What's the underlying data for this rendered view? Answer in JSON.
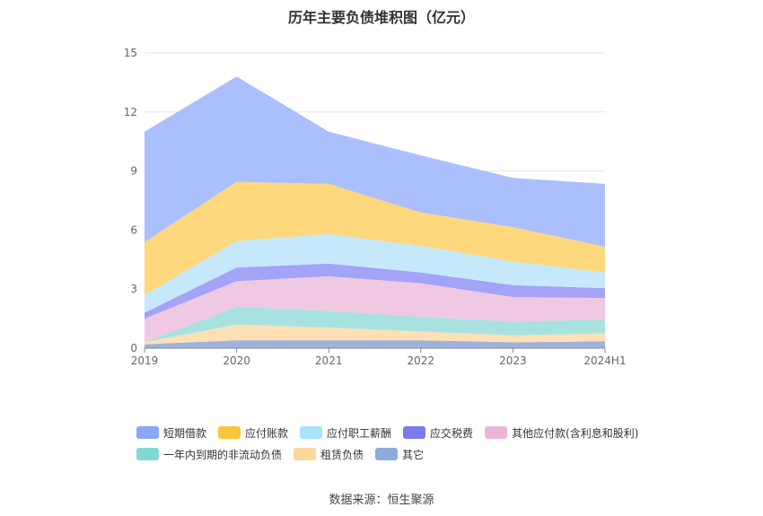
{
  "chart_data": {
    "type": "area",
    "stacked": true,
    "title": "历年主要负债堆积图（亿元）",
    "categories": [
      "2019",
      "2020",
      "2021",
      "2022",
      "2023",
      "2024H1"
    ],
    "ylim": [
      0,
      15
    ],
    "yticks": [
      "0",
      "3",
      "6",
      "9",
      "12",
      "15"
    ],
    "grid": true,
    "legend_position": "bottom",
    "series": [
      {
        "name": "其它",
        "color": "#9db3de",
        "values": [
          0.2,
          0.4,
          0.4,
          0.4,
          0.3,
          0.35
        ]
      },
      {
        "name": "租赁负债",
        "color": "#fde0b4",
        "values": [
          0.1,
          0.8,
          0.65,
          0.45,
          0.35,
          0.4
        ]
      },
      {
        "name": "一年内到期的非流动负债",
        "color": "#a8e2e0",
        "values": [
          0.0,
          0.9,
          0.85,
          0.75,
          0.7,
          0.7
        ]
      },
      {
        "name": "其他应付款(含利息和股利)",
        "color": "#f0c8e2",
        "values": [
          1.2,
          1.3,
          1.75,
          1.7,
          1.25,
          1.1
        ]
      },
      {
        "name": "应交税费",
        "color": "#a3a3f7",
        "values": [
          0.3,
          0.7,
          0.65,
          0.55,
          0.6,
          0.5
        ]
      },
      {
        "name": "应付职工薪酬",
        "color": "#c5e8fb",
        "values": [
          0.9,
          1.35,
          1.5,
          1.35,
          1.2,
          0.8
        ]
      },
      {
        "name": "应付账款",
        "color": "#ffd77d",
        "values": [
          2.7,
          3.0,
          2.55,
          1.7,
          1.75,
          1.3
        ]
      },
      {
        "name": "短期借款",
        "color": "#aabffc",
        "values": [
          5.6,
          5.35,
          2.65,
          2.9,
          2.5,
          3.2
        ]
      }
    ]
  },
  "legend": [
    {
      "label": "短期借款",
      "color": "#8aa6f7"
    },
    {
      "label": "应付账款",
      "color": "#fcc53c"
    },
    {
      "label": "应付职工薪酬",
      "color": "#a8e3fb"
    },
    {
      "label": "应交税费",
      "color": "#7b7bee"
    },
    {
      "label": "其他应付款(含利息和股利)",
      "color": "#eab5d8"
    },
    {
      "label": "一年内到期的非流动负债",
      "color": "#7fd8d4"
    },
    {
      "label": "租赁负债",
      "color": "#fdd69b"
    },
    {
      "label": "其它",
      "color": "#8fabdc"
    }
  ],
  "source": "数据来源：恒生聚源"
}
